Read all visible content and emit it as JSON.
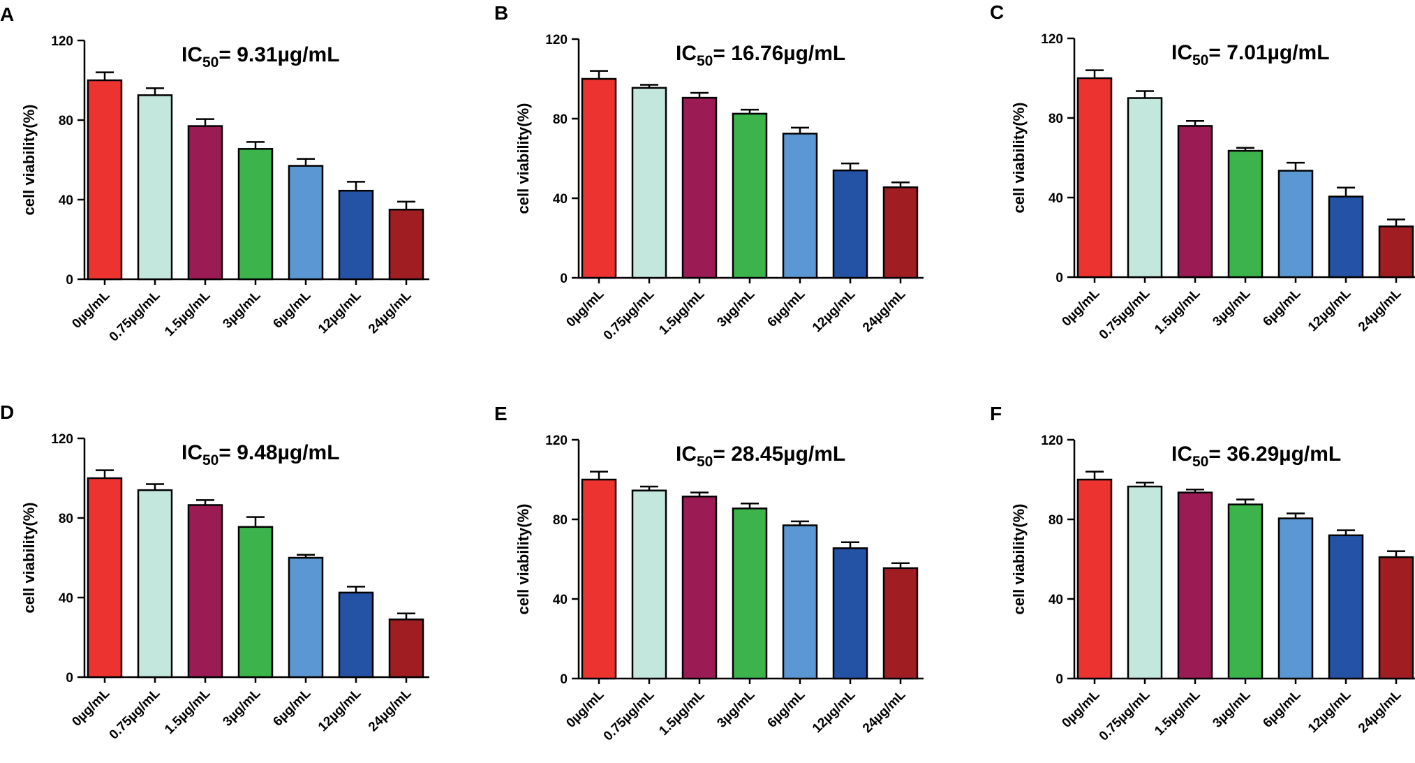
{
  "chart_data": [
    {
      "panel": "A",
      "type": "bar",
      "title": {
        "prefix": "IC",
        "subscript": "50",
        "suffix": "= 9.31µg/mL"
      },
      "ylabel": "cell viability(%)",
      "ylim": [
        0,
        120
      ],
      "yticks": [
        "0",
        "40",
        "80",
        "120"
      ],
      "categories": [
        "0µg/mL",
        "0.75µg/mL",
        "1.5µg/mL",
        "3µg/mL",
        "6µg/mL",
        "12µg/mL",
        "24µg/mL"
      ],
      "values": [
        100,
        92.5,
        77,
        65.5,
        57,
        44.5,
        35
      ],
      "errors": [
        4,
        3.5,
        3.5,
        3.5,
        3.5,
        4.5,
        4
      ]
    },
    {
      "panel": "B",
      "type": "bar",
      "title": {
        "prefix": "IC",
        "subscript": "50",
        "suffix": "= 16.76µg/mL"
      },
      "ylabel": "cell viability(%)",
      "ylim": [
        0,
        120
      ],
      "yticks": [
        "0",
        "40",
        "80",
        "120"
      ],
      "categories": [
        "0µg/mL",
        "0.75µg/mL",
        "1.5µg/mL",
        "3µg/mL",
        "6µg/mL",
        "12µg/mL",
        "24µg/mL"
      ],
      "values": [
        100,
        95.5,
        90.5,
        82.5,
        72.5,
        54,
        45.5
      ],
      "errors": [
        4,
        1.5,
        2.5,
        2,
        3,
        3.5,
        2.5
      ]
    },
    {
      "panel": "C",
      "type": "bar",
      "title": {
        "prefix": "IC",
        "subscript": "50",
        "suffix": "= 7.01µg/mL"
      },
      "ylabel": "cell viability(%)",
      "ylim": [
        0,
        120
      ],
      "yticks": [
        "0",
        "40",
        "80",
        "120"
      ],
      "categories": [
        "0µg/mL",
        "0.75µg/mL",
        "1.5µg/mL",
        "3µg/mL",
        "6µg/mL",
        "12µg/mL",
        "24µg/mL"
      ],
      "values": [
        100,
        90,
        76,
        63.5,
        53.5,
        40.5,
        25.5
      ],
      "errors": [
        4,
        3.5,
        2.5,
        1.5,
        4,
        4.5,
        3.5
      ]
    },
    {
      "panel": "D",
      "type": "bar",
      "title": {
        "prefix": "IC",
        "subscript": "50",
        "suffix": "= 9.48µg/mL"
      },
      "ylabel": "cell viability(%)",
      "ylim": [
        0,
        120
      ],
      "yticks": [
        "0",
        "40",
        "80",
        "120"
      ],
      "categories": [
        "0µg/mL",
        "0.75µg/mL",
        "1.5µg/mL",
        "3µg/mL",
        "6µg/mL",
        "12µg/mL",
        "24µg/mL"
      ],
      "values": [
        100,
        94,
        86.5,
        75.5,
        60,
        42.5,
        29
      ],
      "errors": [
        4,
        3,
        2.5,
        5,
        1.5,
        3,
        3
      ]
    },
    {
      "panel": "E",
      "type": "bar",
      "title": {
        "prefix": "IC",
        "subscript": "50",
        "suffix": "= 28.45µg/mL"
      },
      "ylabel": "cell viability(%)",
      "ylim": [
        0,
        120
      ],
      "yticks": [
        "0",
        "40",
        "80",
        "120"
      ],
      "categories": [
        "0µg/mL",
        "0.75µg/mL",
        "1.5µg/mL",
        "3µg/mL",
        "6µg/mL",
        "12µg/mL",
        "24µg/mL"
      ],
      "values": [
        100,
        94.5,
        91.5,
        85.5,
        77,
        65.5,
        55.5
      ],
      "errors": [
        4,
        2,
        2,
        2.5,
        2,
        3,
        2.5
      ]
    },
    {
      "panel": "F",
      "type": "bar",
      "title": {
        "prefix": "IC",
        "subscript": "50",
        "suffix": "= 36.29µg/mL"
      },
      "ylabel": "cell viability(%)",
      "ylim": [
        0,
        120
      ],
      "yticks": [
        "0",
        "40",
        "80",
        "120"
      ],
      "categories": [
        "0µg/mL",
        "0.75µg/mL",
        "1.5µg/mL",
        "3µg/mL",
        "6µg/mL",
        "12µg/mL",
        "24µg/mL"
      ],
      "values": [
        100,
        96.5,
        93.5,
        87.5,
        80.5,
        72,
        61
      ],
      "errors": [
        4,
        2,
        1.5,
        2.5,
        2.5,
        2.5,
        3
      ]
    }
  ],
  "bar_colors": [
    "#ed3330",
    "#c3e6dd",
    "#9b1b55",
    "#3cb34b",
    "#5b97d3",
    "#2453a5",
    "#a01e22"
  ]
}
